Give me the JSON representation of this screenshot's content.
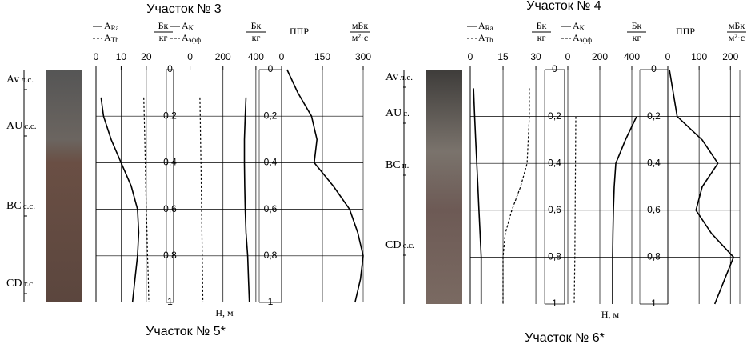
{
  "sites": [
    {
      "title": "Участок № 3",
      "caption": "Участок № 5*",
      "horizons": [
        {
          "code": "Av",
          "note": "л.с."
        },
        {
          "code": "AU",
          "note": "с.с."
        },
        {
          "code": "BC",
          "note": "с.с."
        },
        {
          "code": "CD",
          "note": "т.с."
        }
      ]
    },
    {
      "title": "Участок № 4",
      "caption": "Участок № 6*",
      "horizons": [
        {
          "code": "Av",
          "note": "л.с."
        },
        {
          "code": "AU",
          "note": "с."
        },
        {
          "code": "BC",
          "note": "п."
        },
        {
          "code": "CD",
          "note": "с.с."
        }
      ]
    }
  ],
  "chart_data": [
    {
      "type": "line",
      "unit_top": "Бк",
      "unit_bottom": "кг",
      "xlim": [
        0,
        28
      ],
      "xticks": [
        0,
        10,
        20
      ],
      "ylim": [
        0,
        1
      ],
      "yticks": [
        0,
        0.2,
        0.4,
        0.6,
        0.8,
        1
      ],
      "x": [
        0.12,
        0.2,
        0.3,
        0.4,
        0.5,
        0.6,
        0.7,
        0.8,
        0.9,
        1.0
      ],
      "series": [
        {
          "name": "A",
          "sub": "Ra",
          "color": "#000",
          "dashed": false,
          "values": [
            2,
            3,
            6,
            10,
            14,
            16.5,
            17,
            16.5,
            15.5,
            14.5
          ]
        },
        {
          "name": "A",
          "sub": "Th",
          "color": "#000",
          "dashed": true,
          "values": [
            19,
            19.2,
            19.4,
            19.6,
            19.8,
            20,
            20.3,
            20.5,
            20.8,
            21
          ]
        }
      ]
    },
    {
      "type": "line",
      "unit_top": "Бк",
      "unit_bottom": "кг",
      "ylabel": "Н, м",
      "xlim": [
        -100,
        420
      ],
      "xticks": [
        0,
        200,
        400
      ],
      "ylim": [
        0,
        1
      ],
      "yticks": [
        0,
        {
          "value": 0.2,
          "label": "0,2"
        },
        {
          "value": 0.4,
          "label": "0,4"
        },
        {
          "value": 0.6,
          "label": "0,6"
        },
        {
          "value": 0.8,
          "label": "0,8"
        },
        1
      ],
      "x": [
        0.12,
        0.2,
        0.3,
        0.4,
        0.5,
        0.6,
        0.7,
        0.8,
        0.9,
        1.0
      ],
      "series": [
        {
          "name": "A",
          "sub": "K",
          "color": "#000",
          "dashed": false,
          "values": [
            340,
            335,
            330,
            330,
            332,
            335,
            340,
            350,
            355,
            360
          ]
        },
        {
          "name": "A",
          "sub": "эфф",
          "color": "#000",
          "dashed": true,
          "values": [
            60,
            62,
            64,
            66,
            68,
            70,
            72,
            74,
            76,
            78
          ]
        }
      ]
    },
    {
      "type": "line",
      "unit_top": "мБк",
      "unit_bottom": "м²·с",
      "xlim": [
        0,
        300
      ],
      "xticks": [
        0,
        150,
        300
      ],
      "ylim": [
        0,
        1
      ],
      "yticks": [
        0,
        {
          "value": 0.2,
          "label": "0,2"
        },
        {
          "value": 0.4,
          "label": "0,4"
        },
        {
          "value": 0.6,
          "label": "0,6"
        },
        {
          "value": 0.8,
          "label": "0,8"
        },
        1
      ],
      "x": [
        0,
        0.1,
        0.2,
        0.3,
        0.4,
        0.5,
        0.6,
        0.7,
        0.8,
        0.9,
        1.0
      ],
      "series": [
        {
          "name": "ППР",
          "color": "#000",
          "dashed": false,
          "values": [
            20,
            60,
            110,
            130,
            120,
            190,
            250,
            280,
            300,
            290,
            270
          ]
        }
      ]
    },
    {
      "type": "line",
      "unit_top": "Бк",
      "unit_bottom": "кг",
      "xlim": [
        0,
        34
      ],
      "xticks": [
        0,
        15,
        30
      ],
      "ylim": [
        0,
        1
      ],
      "yticks": [
        0,
        0.2,
        0.4,
        0.6,
        0.8,
        1
      ],
      "x": [
        0.08,
        0.2,
        0.3,
        0.4,
        0.5,
        0.6,
        0.7,
        0.8,
        0.9,
        1.0
      ],
      "series": [
        {
          "name": "A",
          "sub": "Ra",
          "color": "#000",
          "dashed": false,
          "values": [
            1.5,
            2,
            2.5,
            3,
            3.5,
            4,
            4.5,
            5,
            5,
            5
          ]
        },
        {
          "name": "A",
          "sub": "Th",
          "color": "#000",
          "dashed": true,
          "values": [
            27,
            27,
            26.5,
            26,
            23,
            19,
            16,
            15,
            15,
            15
          ]
        }
      ]
    },
    {
      "type": "line",
      "unit_top": "Бк",
      "unit_bottom": "кг",
      "ylabel": "Н, м",
      "xlim": [
        -20,
        450
      ],
      "xticks": [
        0,
        200,
        400
      ],
      "ylim": [
        0,
        1
      ],
      "yticks": [
        0,
        {
          "value": 0.2,
          "label": "0,2"
        },
        {
          "value": 0.4,
          "label": "0,4"
        },
        {
          "value": 0.6,
          "label": "0,6"
        },
        {
          "value": 0.8,
          "label": "0,8"
        },
        1
      ],
      "x": [
        0.2,
        0.3,
        0.4,
        0.5,
        0.6,
        0.7,
        0.8,
        0.9,
        1.0
      ],
      "series": [
        {
          "name": "A",
          "sub": "K",
          "color": "#000",
          "dashed": false,
          "values": [
            430,
            360,
            300,
            290,
            285,
            282,
            280,
            280,
            280
          ]
        },
        {
          "name": "A",
          "sub": "эфф",
          "color": "#000",
          "dashed": true,
          "values": [
            50,
            49,
            48,
            47,
            46,
            45,
            44,
            42,
            40
          ]
        }
      ]
    },
    {
      "type": "line",
      "unit_top": "мБк",
      "unit_bottom": "м²·с",
      "xlim": [
        0,
        230
      ],
      "xticks": [
        0,
        100,
        200
      ],
      "ylim": [
        0,
        1
      ],
      "yticks": [
        0,
        {
          "value": 0.2,
          "label": "0,2"
        },
        {
          "value": 0.4,
          "label": "0,4"
        },
        {
          "value": 0.6,
          "label": "0,6"
        },
        {
          "value": 0.8,
          "label": "0,8"
        },
        1
      ],
      "x": [
        0,
        0.2,
        0.3,
        0.4,
        0.5,
        0.6,
        0.7,
        0.8,
        0.9,
        1.0
      ],
      "series": [
        {
          "name": "ППР",
          "color": "#000",
          "dashed": false,
          "values": [
            5,
            30,
            110,
            160,
            110,
            90,
            140,
            210,
            180,
            150
          ]
        }
      ]
    }
  ]
}
